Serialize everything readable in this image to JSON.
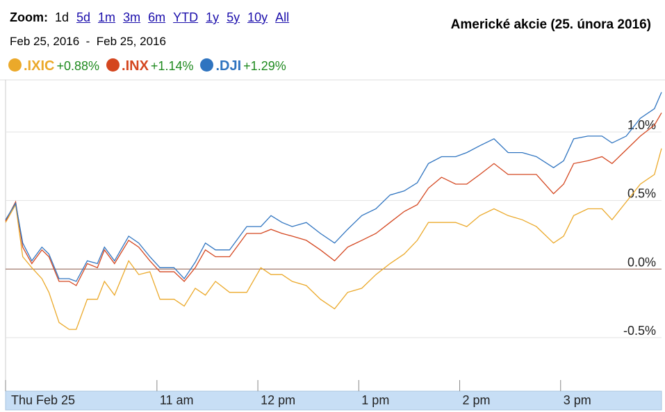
{
  "toolbar": {
    "zoom_label": "Zoom:",
    "options": [
      "1d",
      "5d",
      "1m",
      "3m",
      "6m",
      "YTD",
      "1y",
      "5y",
      "10y",
      "All"
    ],
    "date_range": "Feb 25, 2016  -  Feb 25, 2016"
  },
  "chart_data": {
    "type": "line",
    "title": "Americké akcie (25. února 2016)",
    "x": [
      9.5,
      9.6,
      9.67,
      9.76,
      9.86,
      9.93,
      10.03,
      10.13,
      10.2,
      10.31,
      10.41,
      10.48,
      10.58,
      10.72,
      10.82,
      10.93,
      11.03,
      11.17,
      11.27,
      11.38,
      11.48,
      11.58,
      11.72,
      11.89,
      12.03,
      12.13,
      12.24,
      12.34,
      12.48,
      12.62,
      12.76,
      12.89,
      13.03,
      13.17,
      13.31,
      13.45,
      13.58,
      13.69,
      13.82,
      13.96,
      14.07,
      14.2,
      14.34,
      14.48,
      14.62,
      14.76,
      14.93,
      15.03,
      15.13,
      15.27,
      15.41,
      15.51,
      15.65,
      15.79,
      15.93,
      16.0
    ],
    "series": [
      {
        "name": ".IXIC",
        "change": "+0.88%",
        "color": "#eba92a",
        "values": [
          0.34,
          0.47,
          0.09,
          0.01,
          -0.07,
          -0.17,
          -0.39,
          -0.44,
          -0.44,
          -0.22,
          -0.22,
          -0.09,
          -0.19,
          0.06,
          -0.04,
          -0.02,
          -0.22,
          -0.22,
          -0.27,
          -0.14,
          -0.19,
          -0.09,
          -0.17,
          -0.17,
          0.01,
          -0.04,
          -0.04,
          -0.09,
          -0.12,
          -0.22,
          -0.29,
          -0.17,
          -0.14,
          -0.04,
          0.04,
          0.11,
          0.21,
          0.34,
          0.34,
          0.34,
          0.31,
          0.39,
          0.44,
          0.39,
          0.36,
          0.31,
          0.19,
          0.24,
          0.39,
          0.44,
          0.44,
          0.36,
          0.49,
          0.62,
          0.69,
          0.88
        ]
      },
      {
        "name": ".INX",
        "change": "+1.14%",
        "color": "#d4461f",
        "values": [
          0.35,
          0.49,
          0.16,
          0.04,
          0.14,
          0.09,
          -0.09,
          -0.09,
          -0.12,
          0.04,
          0.01,
          0.14,
          0.04,
          0.21,
          0.16,
          0.06,
          -0.02,
          -0.02,
          -0.09,
          0.01,
          0.14,
          0.09,
          0.09,
          0.26,
          0.26,
          0.29,
          0.26,
          0.24,
          0.21,
          0.14,
          0.06,
          0.16,
          0.21,
          0.26,
          0.34,
          0.42,
          0.47,
          0.59,
          0.67,
          0.62,
          0.62,
          0.69,
          0.77,
          0.69,
          0.69,
          0.69,
          0.55,
          0.62,
          0.77,
          0.79,
          0.82,
          0.77,
          0.87,
          0.97,
          1.05,
          1.14
        ]
      },
      {
        "name": ".DJI",
        "change": "+1.29%",
        "color": "#2f74c0",
        "values": [
          0.36,
          0.48,
          0.19,
          0.06,
          0.16,
          0.11,
          -0.07,
          -0.07,
          -0.09,
          0.06,
          0.04,
          0.16,
          0.06,
          0.24,
          0.19,
          0.09,
          0.01,
          0.01,
          -0.07,
          0.05,
          0.19,
          0.14,
          0.14,
          0.31,
          0.31,
          0.39,
          0.34,
          0.31,
          0.34,
          0.26,
          0.19,
          0.29,
          0.39,
          0.44,
          0.54,
          0.57,
          0.63,
          0.77,
          0.82,
          0.82,
          0.85,
          0.9,
          0.95,
          0.85,
          0.85,
          0.82,
          0.74,
          0.79,
          0.95,
          0.97,
          0.97,
          0.92,
          0.97,
          1.1,
          1.17,
          1.29
        ]
      }
    ],
    "xlim": [
      9.5,
      16
    ],
    "xticks": [
      {
        "value": 9.5,
        "label": "Thu Feb 25"
      },
      {
        "value": 11,
        "label": "11 am"
      },
      {
        "value": 12,
        "label": "12 pm"
      },
      {
        "value": 13,
        "label": "1 pm"
      },
      {
        "value": 14,
        "label": "2 pm"
      },
      {
        "value": 15,
        "label": "3 pm"
      }
    ],
    "ylim": [
      -0.85,
      1.38
    ],
    "yticks": [
      {
        "value": -0.5,
        "label": "-0.5%"
      },
      {
        "value": 0,
        "label": "0.0%"
      },
      {
        "value": 0.5,
        "label": "0.5%"
      },
      {
        "value": 1,
        "label": "1.0%"
      }
    ],
    "grid": true
  }
}
